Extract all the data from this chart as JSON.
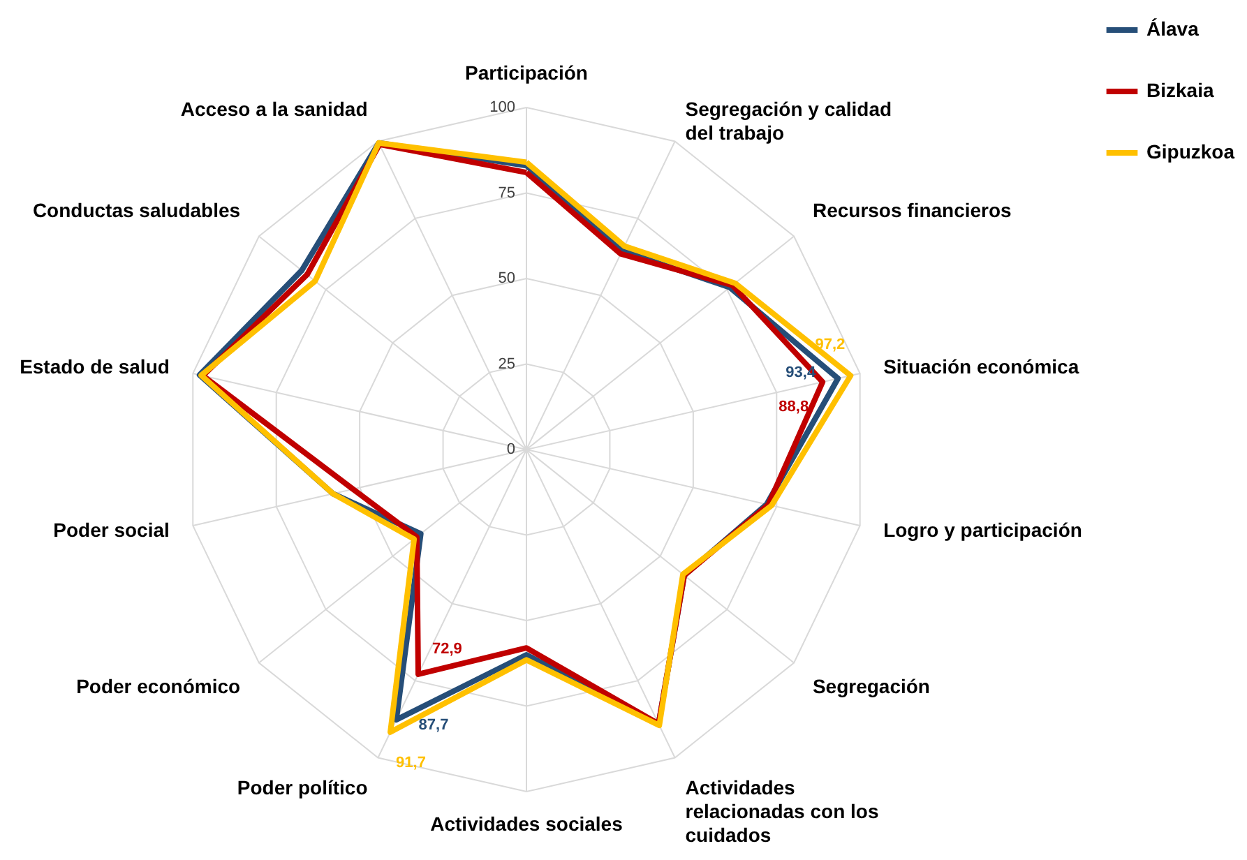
{
  "chart_data": {
    "type": "radar",
    "categories": [
      "Participación",
      "Segregación y calidad del trabajo",
      "Recursos financieros",
      "Situación económica",
      "Logro y participación",
      "Segregación",
      "Actividades relacionadas con los cuidados",
      "Actividades sociales",
      "Poder político",
      "Poder económico",
      "Poder social",
      "Estado de salud",
      "Conductas saludables",
      "Acceso a la sanidad"
    ],
    "series": [
      {
        "name": "Álava",
        "color": "#264e78",
        "values": [
          83,
          64.5,
          76,
          93.4,
          72,
          59,
          89,
          60,
          87.7,
          39.5,
          58,
          98,
          84,
          99.5
        ],
        "value_labels": [
          null,
          null,
          null,
          "93,4",
          null,
          null,
          null,
          null,
          "87,7",
          null,
          null,
          null,
          null,
          null
        ]
      },
      {
        "name": "Bizkaia",
        "color": "#c00000",
        "values": [
          81,
          63.5,
          77,
          88.8,
          72.5,
          59,
          89,
          58,
          72.9,
          41,
          52,
          97,
          82,
          99
        ],
        "value_labels": [
          null,
          null,
          null,
          "88,8",
          null,
          null,
          null,
          null,
          "72,9",
          null,
          null,
          null,
          null,
          null
        ]
      },
      {
        "name": "Gipuzkoa",
        "color": "#ffc000",
        "values": [
          84,
          66,
          78,
          97.2,
          73.5,
          58.5,
          89.5,
          61.5,
          91.7,
          42,
          58,
          97.5,
          79,
          99.5
        ],
        "value_labels": [
          null,
          null,
          null,
          "97,2",
          null,
          null,
          null,
          null,
          "91,7",
          null,
          null,
          null,
          null,
          null
        ]
      }
    ],
    "ylim": [
      0,
      100
    ],
    "yticks": [
      0,
      25,
      50,
      75,
      100
    ],
    "grid": true,
    "legend": "top right"
  }
}
